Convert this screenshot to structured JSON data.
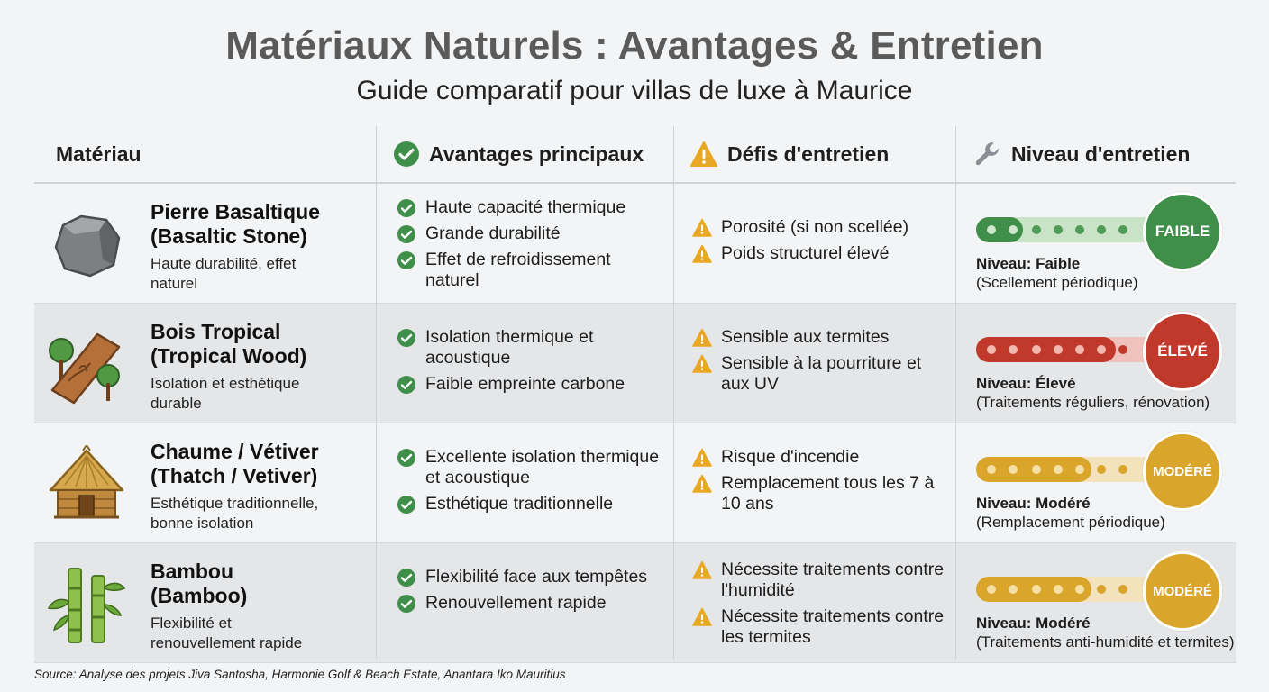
{
  "title": "Matériaux Naturels : Avantages & Entretien",
  "subtitle": "Guide comparatif pour villas de luxe à Maurice",
  "headers": {
    "material": "Matériau",
    "advantages": "Avantages principaux",
    "challenges": "Défis d'entretien",
    "level": "Niveau d'entretien"
  },
  "header_icons": [
    "check-circle-icon",
    "warning-icon",
    "wrench-icon"
  ],
  "colors": {
    "check": "#3f8f4a",
    "warning": "#e8a823",
    "faible": "#3f8f4a",
    "eleve": "#c0392b",
    "modere": "#d9a52a"
  },
  "rows": [
    {
      "icon": "stone-icon",
      "name1": "Pierre Basaltique",
      "name2": "(Basaltic Stone)",
      "desc": "Haute durabilité, effet naturel",
      "advantages": [
        "Haute capacité thermique",
        "Grande durabilité",
        "Effet de refroidissement naturel"
      ],
      "challenges": [
        "Porosité (si non scellée)",
        "Poids structurel élevé"
      ],
      "badge": "FAIBLE",
      "level_label": "Niveau: Faible",
      "level_note": "(Scellement périodique)",
      "level_fraction": 0.25
    },
    {
      "icon": "wood-trees-icon",
      "name1": "Bois Tropical",
      "name2": "(Tropical Wood)",
      "desc": "Isolation et esthétique durable",
      "advantages": [
        "Isolation thermique et acoustique",
        "Faible empreinte carbone"
      ],
      "challenges": [
        "Sensible aux termites",
        "Sensible à la pourriture et aux UV"
      ],
      "badge": "ÉLEVÉ",
      "level_label": "Niveau: Élevé",
      "level_note": "(Traitements réguliers, rénovation)",
      "level_fraction": 0.75
    },
    {
      "icon": "thatch-hut-icon",
      "name1": "Chaume / Vétiver",
      "name2": "(Thatch / Vetiver)",
      "desc": "Esthétique traditionnelle, bonne isolation",
      "advantages": [
        "Excellente isolation thermique et acoustique",
        "Esthétique traditionnelle"
      ],
      "challenges": [
        "Risque d'incendie",
        "Remplacement tous les 7 à 10 ans"
      ],
      "badge": "MODÉRÉ",
      "level_label": "Niveau: Modéré",
      "level_note": "(Remplacement périodique)",
      "level_fraction": 0.67
    },
    {
      "icon": "bamboo-icon",
      "name1": "Bambou",
      "name2": "(Bamboo)",
      "desc": "Flexibilité et renouvellement rapide",
      "advantages": [
        "Flexibilité face aux tempêtes",
        "Renouvellement rapide"
      ],
      "challenges": [
        "Nécessite traitements contre l'humidité",
        "Nécessite traitements contre les termites"
      ],
      "badge": "MODÉRÉ",
      "level_label": "Niveau: Modéré",
      "level_note": "(Traitements anti-humidité et termites)",
      "level_fraction": 0.67
    }
  ],
  "source": "Source: Analyse des projets Jiva Santosha, Harmonie Golf & Beach Estate, Anantara Iko Mauritius"
}
